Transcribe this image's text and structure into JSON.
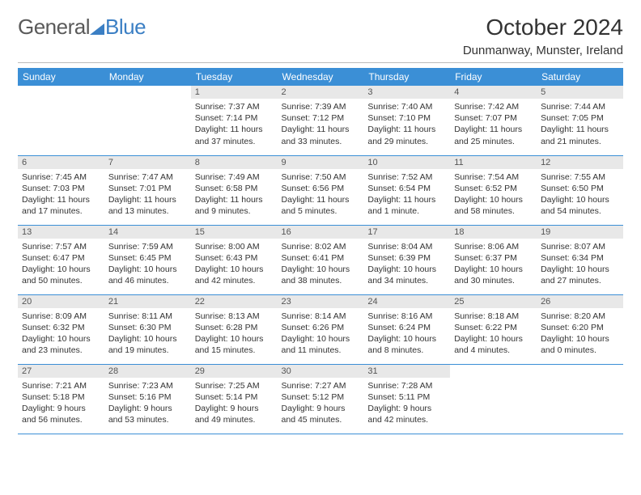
{
  "logo": {
    "textLeft": "General",
    "textRight": "Blue"
  },
  "title": "October 2024",
  "location": "Dunmanway, Munster, Ireland",
  "colors": {
    "header_bg": "#3b8fd6",
    "header_text": "#ffffff",
    "daynum_bg": "#e8e8e8",
    "row_border": "#3b8fd6",
    "logo_gray": "#5a5a5a",
    "logo_blue": "#3b7fc4"
  },
  "weekdays": [
    "Sunday",
    "Monday",
    "Tuesday",
    "Wednesday",
    "Thursday",
    "Friday",
    "Saturday"
  ],
  "weeks": [
    [
      null,
      null,
      {
        "n": "1",
        "sr": "7:37 AM",
        "ss": "7:14 PM",
        "dl": "11 hours and 37 minutes."
      },
      {
        "n": "2",
        "sr": "7:39 AM",
        "ss": "7:12 PM",
        "dl": "11 hours and 33 minutes."
      },
      {
        "n": "3",
        "sr": "7:40 AM",
        "ss": "7:10 PM",
        "dl": "11 hours and 29 minutes."
      },
      {
        "n": "4",
        "sr": "7:42 AM",
        "ss": "7:07 PM",
        "dl": "11 hours and 25 minutes."
      },
      {
        "n": "5",
        "sr": "7:44 AM",
        "ss": "7:05 PM",
        "dl": "11 hours and 21 minutes."
      }
    ],
    [
      {
        "n": "6",
        "sr": "7:45 AM",
        "ss": "7:03 PM",
        "dl": "11 hours and 17 minutes."
      },
      {
        "n": "7",
        "sr": "7:47 AM",
        "ss": "7:01 PM",
        "dl": "11 hours and 13 minutes."
      },
      {
        "n": "8",
        "sr": "7:49 AM",
        "ss": "6:58 PM",
        "dl": "11 hours and 9 minutes."
      },
      {
        "n": "9",
        "sr": "7:50 AM",
        "ss": "6:56 PM",
        "dl": "11 hours and 5 minutes."
      },
      {
        "n": "10",
        "sr": "7:52 AM",
        "ss": "6:54 PM",
        "dl": "11 hours and 1 minute."
      },
      {
        "n": "11",
        "sr": "7:54 AM",
        "ss": "6:52 PM",
        "dl": "10 hours and 58 minutes."
      },
      {
        "n": "12",
        "sr": "7:55 AM",
        "ss": "6:50 PM",
        "dl": "10 hours and 54 minutes."
      }
    ],
    [
      {
        "n": "13",
        "sr": "7:57 AM",
        "ss": "6:47 PM",
        "dl": "10 hours and 50 minutes."
      },
      {
        "n": "14",
        "sr": "7:59 AM",
        "ss": "6:45 PM",
        "dl": "10 hours and 46 minutes."
      },
      {
        "n": "15",
        "sr": "8:00 AM",
        "ss": "6:43 PM",
        "dl": "10 hours and 42 minutes."
      },
      {
        "n": "16",
        "sr": "8:02 AM",
        "ss": "6:41 PM",
        "dl": "10 hours and 38 minutes."
      },
      {
        "n": "17",
        "sr": "8:04 AM",
        "ss": "6:39 PM",
        "dl": "10 hours and 34 minutes."
      },
      {
        "n": "18",
        "sr": "8:06 AM",
        "ss": "6:37 PM",
        "dl": "10 hours and 30 minutes."
      },
      {
        "n": "19",
        "sr": "8:07 AM",
        "ss": "6:34 PM",
        "dl": "10 hours and 27 minutes."
      }
    ],
    [
      {
        "n": "20",
        "sr": "8:09 AM",
        "ss": "6:32 PM",
        "dl": "10 hours and 23 minutes."
      },
      {
        "n": "21",
        "sr": "8:11 AM",
        "ss": "6:30 PM",
        "dl": "10 hours and 19 minutes."
      },
      {
        "n": "22",
        "sr": "8:13 AM",
        "ss": "6:28 PM",
        "dl": "10 hours and 15 minutes."
      },
      {
        "n": "23",
        "sr": "8:14 AM",
        "ss": "6:26 PM",
        "dl": "10 hours and 11 minutes."
      },
      {
        "n": "24",
        "sr": "8:16 AM",
        "ss": "6:24 PM",
        "dl": "10 hours and 8 minutes."
      },
      {
        "n": "25",
        "sr": "8:18 AM",
        "ss": "6:22 PM",
        "dl": "10 hours and 4 minutes."
      },
      {
        "n": "26",
        "sr": "8:20 AM",
        "ss": "6:20 PM",
        "dl": "10 hours and 0 minutes."
      }
    ],
    [
      {
        "n": "27",
        "sr": "7:21 AM",
        "ss": "5:18 PM",
        "dl": "9 hours and 56 minutes."
      },
      {
        "n": "28",
        "sr": "7:23 AM",
        "ss": "5:16 PM",
        "dl": "9 hours and 53 minutes."
      },
      {
        "n": "29",
        "sr": "7:25 AM",
        "ss": "5:14 PM",
        "dl": "9 hours and 49 minutes."
      },
      {
        "n": "30",
        "sr": "7:27 AM",
        "ss": "5:12 PM",
        "dl": "9 hours and 45 minutes."
      },
      {
        "n": "31",
        "sr": "7:28 AM",
        "ss": "5:11 PM",
        "dl": "9 hours and 42 minutes."
      },
      null,
      null
    ]
  ],
  "labels": {
    "sunrise": "Sunrise: ",
    "sunset": "Sunset: ",
    "daylight": "Daylight: "
  }
}
